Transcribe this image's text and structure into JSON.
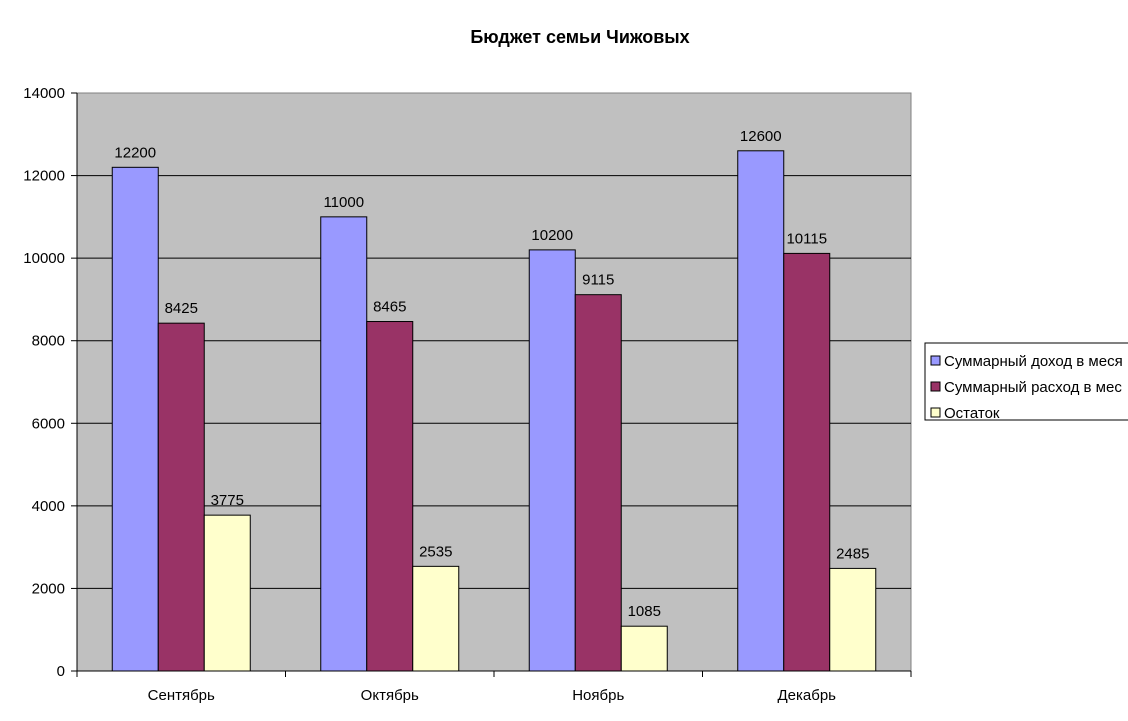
{
  "chart_data": {
    "type": "bar",
    "title": "Бюджет семьи Чижовых",
    "xlabel": "",
    "ylabel": "",
    "categories": [
      "Сентябрь",
      "Октябрь",
      "Ноябрь",
      "Декабрь"
    ],
    "series": [
      {
        "name": "Суммарный доход в месяц",
        "legend_text": "Суммарный доход в меся",
        "color": "#9999ff",
        "values": [
          12200,
          11000,
          10200,
          12600
        ]
      },
      {
        "name": "Суммарный расход в месяц",
        "legend_text": "Суммарный расход в мес",
        "color": "#993366",
        "values": [
          8425,
          8465,
          9115,
          10115
        ]
      },
      {
        "name": "Остаток",
        "legend_text": "Остаток",
        "color": "#ffffcc",
        "values": [
          3775,
          2535,
          1085,
          2485
        ]
      }
    ],
    "ylim": [
      0,
      14000
    ],
    "yticks": [
      0,
      2000,
      4000,
      6000,
      8000,
      10000,
      12000,
      14000
    ],
    "grid": true,
    "plot_background": "#c0c0c0",
    "legend_position": "right"
  }
}
